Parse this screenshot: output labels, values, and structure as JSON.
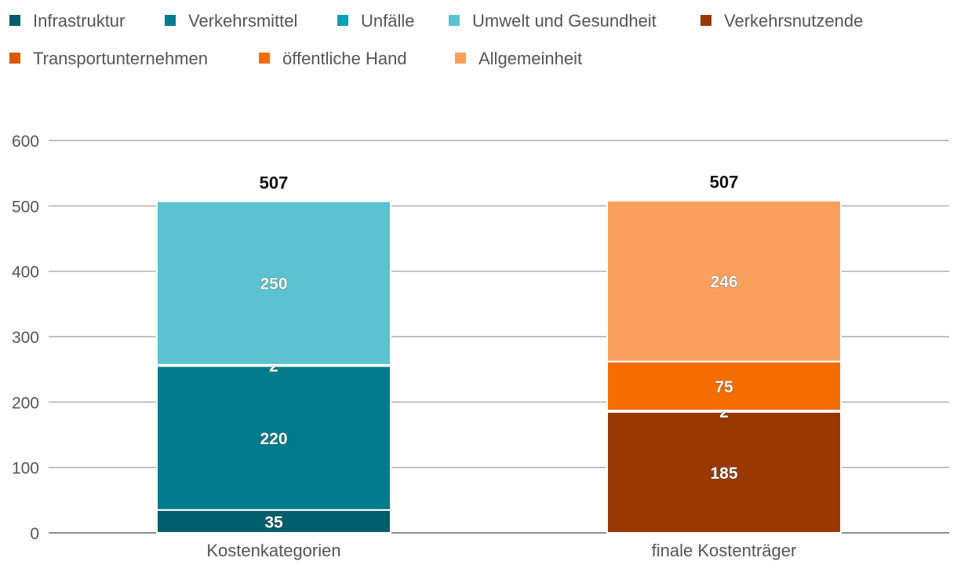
{
  "chart_data": {
    "type": "bar",
    "stacked": true,
    "categories": [
      "Kostenkategorien",
      "finale Kostenträger"
    ],
    "ylim": [
      0,
      600
    ],
    "yticks": [
      0,
      100,
      200,
      300,
      400,
      500,
      600
    ],
    "grid": true,
    "legend_position": "top",
    "series": [
      {
        "name": "Infrastruktur",
        "color": "#005f6b",
        "values": [
          35,
          0
        ],
        "labels": [
          "35",
          ""
        ]
      },
      {
        "name": "Verkehrsmittel",
        "color": "#007b8c",
        "values": [
          220,
          0
        ],
        "labels": [
          "220",
          ""
        ]
      },
      {
        "name": "Unfälle",
        "color": "#00a0b5",
        "values": [
          2,
          0
        ],
        "labels": [
          "2",
          ""
        ]
      },
      {
        "name": "Umwelt und Gesundheit",
        "color": "#5bc2cf",
        "values": [
          250,
          0
        ],
        "labels": [
          "250",
          ""
        ]
      },
      {
        "name": "Verkehrsnutzende",
        "color": "#993800",
        "values": [
          0,
          185
        ],
        "labels": [
          "",
          "185"
        ]
      },
      {
        "name": "Transportunternehmen",
        "color": "#d95a00",
        "values": [
          0,
          2
        ],
        "labels": [
          "",
          "2"
        ]
      },
      {
        "name": "öffentliche Hand",
        "color": "#f56c00",
        "values": [
          0,
          75
        ],
        "labels": [
          "",
          "75"
        ]
      },
      {
        "name": "Allgemeinheit",
        "color": "#f9a05e",
        "values": [
          0,
          246
        ],
        "labels": [
          "",
          "246"
        ]
      }
    ],
    "totals": [
      "507",
      "507"
    ]
  }
}
